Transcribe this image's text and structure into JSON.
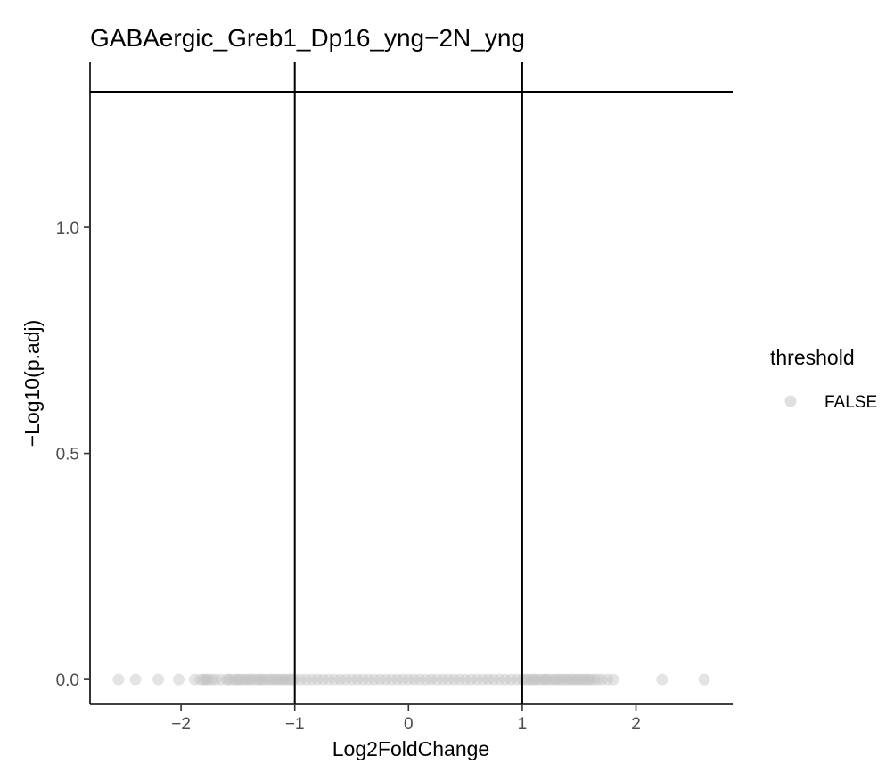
{
  "chart_data": {
    "type": "scatter",
    "title": "GABAergic_Greb1_Dp16_yng−2N_yng",
    "xlabel": "Log2FoldChange",
    "ylabel": "−Log10(p.adj)",
    "xlim": [
      -2.8,
      2.85
    ],
    "ylim": [
      -0.055,
      1.365
    ],
    "xticks": [
      -2,
      -1,
      0,
      1,
      2
    ],
    "xtick_labels": [
      "−2",
      "−1",
      "0",
      "1",
      "2"
    ],
    "yticks": [
      0.0,
      0.5,
      1.0
    ],
    "ytick_labels": [
      "0.0",
      "0.5",
      "1.0"
    ],
    "reference_lines": {
      "vertical_x": [
        -1,
        1
      ],
      "horizontal_y": [
        1.3
      ]
    },
    "grid": false,
    "legend": {
      "title": "threshold",
      "position": "right",
      "entries": [
        {
          "label": "FALSE",
          "color": "#bfbfbf"
        }
      ]
    },
    "series": [
      {
        "name": "FALSE",
        "color": "#bfbfbf",
        "points": [
          [
            -2.55,
            0
          ],
          [
            -2.4,
            0
          ],
          [
            -2.2,
            0
          ],
          [
            -2.02,
            0
          ],
          [
            -1.88,
            0
          ],
          [
            -1.83,
            0
          ],
          [
            -1.8,
            0
          ],
          [
            -1.78,
            0
          ],
          [
            -1.76,
            0
          ],
          [
            -1.73,
            0
          ],
          [
            -1.7,
            0
          ],
          [
            -1.65,
            0
          ],
          [
            -1.6,
            0
          ],
          [
            -1.58,
            0
          ],
          [
            -1.55,
            0
          ],
          [
            -1.52,
            0
          ],
          [
            -1.5,
            0
          ],
          [
            -1.48,
            0
          ],
          [
            -1.45,
            0
          ],
          [
            -1.43,
            0
          ],
          [
            -1.4,
            0
          ],
          [
            -1.38,
            0
          ],
          [
            -1.35,
            0
          ],
          [
            -1.32,
            0
          ],
          [
            -1.3,
            0
          ],
          [
            -1.28,
            0
          ],
          [
            -1.25,
            0
          ],
          [
            -1.22,
            0
          ],
          [
            -1.2,
            0
          ],
          [
            -1.17,
            0
          ],
          [
            -1.15,
            0
          ],
          [
            -1.12,
            0
          ],
          [
            -1.1,
            0
          ],
          [
            -1.08,
            0
          ],
          [
            -1.05,
            0
          ],
          [
            -1.03,
            0
          ],
          [
            -1.0,
            0
          ],
          [
            -0.95,
            0
          ],
          [
            -0.9,
            0
          ],
          [
            -0.85,
            0
          ],
          [
            -0.8,
            0
          ],
          [
            -0.75,
            0
          ],
          [
            -0.7,
            0
          ],
          [
            -0.65,
            0
          ],
          [
            -0.6,
            0
          ],
          [
            -0.55,
            0
          ],
          [
            -0.5,
            0
          ],
          [
            -0.45,
            0
          ],
          [
            -0.4,
            0
          ],
          [
            -0.35,
            0
          ],
          [
            -0.3,
            0
          ],
          [
            -0.25,
            0
          ],
          [
            -0.2,
            0
          ],
          [
            -0.15,
            0
          ],
          [
            -0.1,
            0
          ],
          [
            -0.05,
            0
          ],
          [
            0.0,
            0
          ],
          [
            0.05,
            0
          ],
          [
            0.1,
            0
          ],
          [
            0.15,
            0
          ],
          [
            0.2,
            0
          ],
          [
            0.25,
            0
          ],
          [
            0.3,
            0
          ],
          [
            0.35,
            0
          ],
          [
            0.4,
            0
          ],
          [
            0.45,
            0
          ],
          [
            0.5,
            0
          ],
          [
            0.55,
            0
          ],
          [
            0.6,
            0
          ],
          [
            0.65,
            0
          ],
          [
            0.7,
            0
          ],
          [
            0.75,
            0
          ],
          [
            0.8,
            0
          ],
          [
            0.85,
            0
          ],
          [
            0.9,
            0
          ],
          [
            0.95,
            0
          ],
          [
            1.0,
            0
          ],
          [
            1.03,
            0
          ],
          [
            1.05,
            0
          ],
          [
            1.08,
            0
          ],
          [
            1.1,
            0
          ],
          [
            1.12,
            0
          ],
          [
            1.15,
            0
          ],
          [
            1.18,
            0
          ],
          [
            1.2,
            0
          ],
          [
            1.22,
            0
          ],
          [
            1.25,
            0
          ],
          [
            1.28,
            0
          ],
          [
            1.3,
            0
          ],
          [
            1.33,
            0
          ],
          [
            1.35,
            0
          ],
          [
            1.38,
            0
          ],
          [
            1.4,
            0
          ],
          [
            1.43,
            0
          ],
          [
            1.45,
            0
          ],
          [
            1.48,
            0
          ],
          [
            1.5,
            0
          ],
          [
            1.53,
            0
          ],
          [
            1.55,
            0
          ],
          [
            1.58,
            0
          ],
          [
            1.6,
            0
          ],
          [
            1.63,
            0
          ],
          [
            1.66,
            0
          ],
          [
            1.7,
            0
          ],
          [
            1.75,
            0
          ],
          [
            1.8,
            0
          ],
          [
            2.23,
            0
          ],
          [
            2.6,
            0
          ]
        ]
      }
    ]
  }
}
